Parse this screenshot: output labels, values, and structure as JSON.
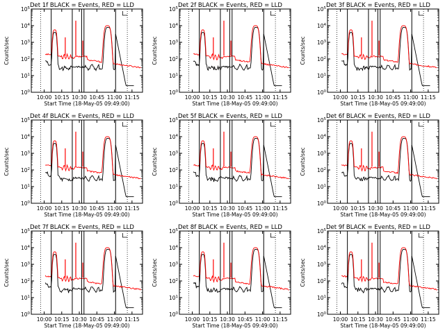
{
  "chart_data": {
    "type": "line",
    "ylabel": "Counts/sec",
    "xlabel": "Start Time (18-May-05 09:49:00)",
    "xticks": [
      "10:00",
      "10:15",
      "10:30",
      "10:45",
      "11:00",
      "11:15"
    ],
    "yticks": [
      {
        "base": "10",
        "exp": "0"
      },
      {
        "base": "10",
        "exp": "1"
      },
      {
        "base": "10",
        "exp": "2"
      },
      {
        "base": "10",
        "exp": "3"
      },
      {
        "base": "10",
        "exp": "4"
      },
      {
        "base": "10",
        "exp": "5"
      }
    ],
    "ylim_log10": [
      0,
      5
    ],
    "xlim_minutes_after_start": [
      0,
      95
    ],
    "series_colors": {
      "Events": "#000000",
      "LLD": "#ff0000"
    },
    "panels": [
      {
        "title": "Det 1f BLACK = Events, RED = LLD",
        "vlines": [
          35,
          43,
          45
        ]
      },
      {
        "title": "Det 2f BLACK = Events, RED = LLD",
        "vlines": [
          35,
          43,
          45
        ]
      },
      {
        "title": "Det 3f BLACK = Events, RED = LLD",
        "vlines": [
          35,
          43,
          45
        ]
      },
      {
        "title": "Det 4f BLACK = Events, RED = LLD",
        "vlines": [
          35,
          43,
          45
        ]
      },
      {
        "title": "Det 5f BLACK = Events, RED = LLD",
        "vlines": [
          35,
          43,
          45
        ]
      },
      {
        "title": "Det 6f BLACK = Events, RED = LLD",
        "vlines": [
          35,
          43,
          45
        ]
      },
      {
        "title": "Det 7f BLACK = Events, RED = LLD",
        "vlines": [
          35,
          43,
          45
        ]
      },
      {
        "title": "Det 8f BLACK = Events, RED = LLD",
        "vlines": [
          35,
          43,
          45
        ]
      },
      {
        "title": "Det 9f BLACK = Events, RED = LLD",
        "vlines": [
          35,
          43,
          45
        ]
      }
    ]
  }
}
